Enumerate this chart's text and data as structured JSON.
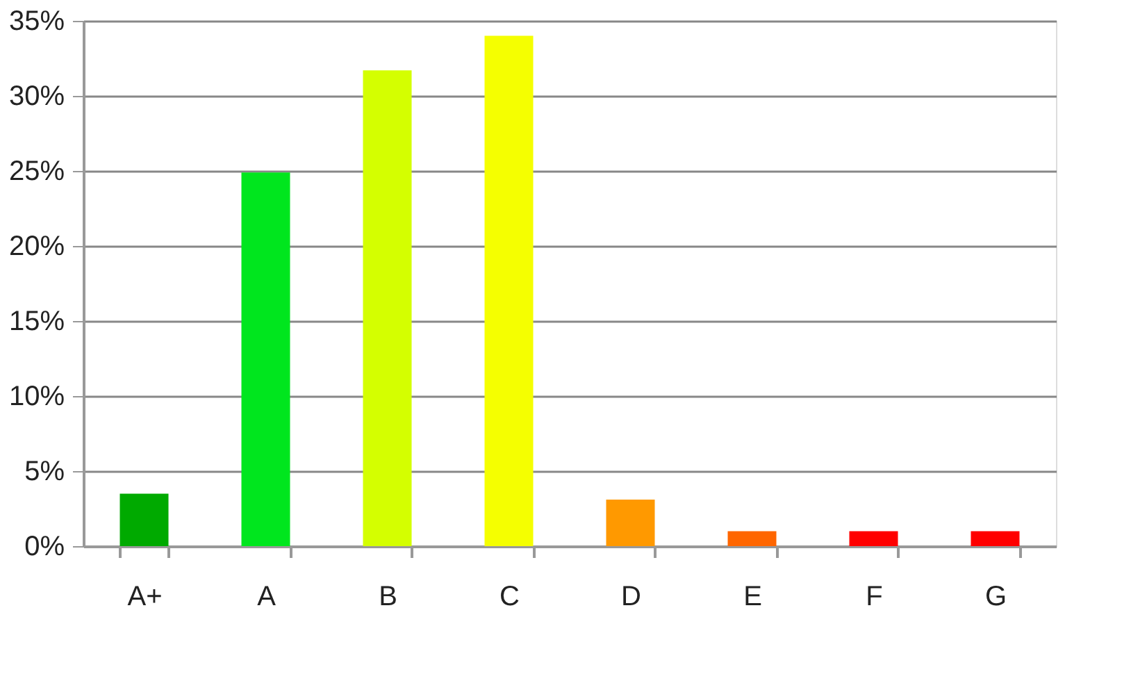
{
  "chart_data": {
    "type": "bar",
    "categories": [
      "A+",
      "A",
      "B",
      "C",
      "D",
      "E",
      "F",
      "G"
    ],
    "values": [
      3.5,
      24.9,
      31.7,
      34.0,
      3.1,
      1.0,
      1.0,
      1.0
    ],
    "colors": [
      "#00aa00",
      "#00e61e",
      "#d4ff00",
      "#f5ff00",
      "#ff9900",
      "#ff6600",
      "#ff0000",
      "#ff0000"
    ],
    "ylim": [
      0,
      35
    ],
    "yticks": [
      {
        "value": 0,
        "label": "0%"
      },
      {
        "value": 5,
        "label": "5%"
      },
      {
        "value": 10,
        "label": "10%"
      },
      {
        "value": 15,
        "label": "15%"
      },
      {
        "value": 20,
        "label": "20%"
      },
      {
        "value": 25,
        "label": "25%"
      },
      {
        "value": 30,
        "label": "30%"
      },
      {
        "value": 35,
        "label": "35%"
      }
    ],
    "grid": "y",
    "legend": false
  }
}
